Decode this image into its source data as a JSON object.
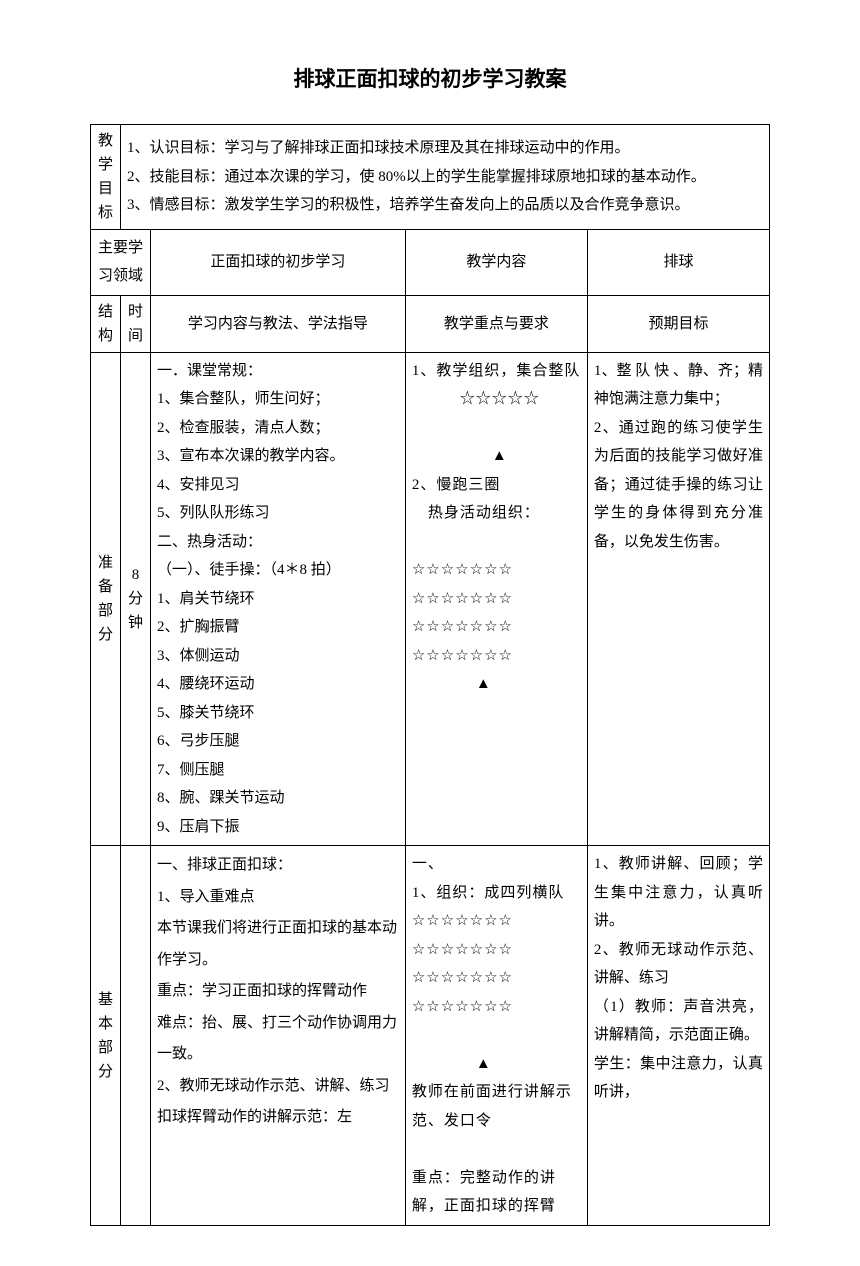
{
  "title": "排球正面扣球的初步学习教案",
  "row_objectives": {
    "label_col": [
      "教",
      "学",
      "目",
      "标"
    ],
    "text": "1、认识目标：学习与了解排球正面扣球技术原理及其在排球运动中的作用。\n2、技能目标：通过本次课的学习，使 80%以上的学生能掌握排球原地扣球的基本动作。\n3、情感目标：激发学生学习的积极性，培养学生奋发向上的品质以及合作竞争意识。"
  },
  "row_domain": {
    "label1": "主要学习领域",
    "value1": "正面扣球的初步学习",
    "label2": "教学内容",
    "value2": "排球"
  },
  "row_headers": {
    "col1": [
      "结",
      "构"
    ],
    "col2": [
      "时",
      "间"
    ],
    "col3": "学习内容与教法、学法指导",
    "col4": "教学重点与要求",
    "col5": "预期目标"
  },
  "section_prep": {
    "label": [
      "准",
      "备",
      "部",
      "分"
    ],
    "time": "8分钟",
    "content": "一．课堂常规：\n1、集合整队，师生问好；\n2、检查服装，清点人数；\n3、宣布本次课的教学内容。\n4、安排见习\n5、列队队形练习\n二、热身活动：\n（一）、徒手操：（4＊8 拍）\n1、肩关节绕环\n2、扩胸振臂\n3、体侧运动\n4、腰绕环运动\n5、膝关节绕环\n6、弓步压腿\n7、侧压腿\n8、腕、踝关节运动\n9、压肩下振",
    "key_points": "1、教学组织，集合整队\n　　　☆☆☆☆☆\n\n　　　　　▲\n2、慢跑三圈\n　热身活动组织：\n\n☆☆☆☆☆☆☆\n☆☆☆☆☆☆☆\n☆☆☆☆☆☆☆\n☆☆☆☆☆☆☆\n　　　　▲",
    "goals": "1、整 队 快 、静、齐；精神饱满注意力集中；\n2、通过跑的练习使学生为后面的技能学习做好准备；通过徒手操的练习让学生的身体得到充分准备，以免发生伤害。"
  },
  "section_main": {
    "label": [
      "基",
      "本",
      "部",
      "分"
    ],
    "content": "一、排球正面扣球：\n1、导入重难点\n本节课我们将进行正面扣球的基本动作学习。\n重点：学习正面扣球的挥臂动作\n难点：抬、展、打三个动作协调用力一致。\n2、教师无球动作示范、讲解、练习\n扣球挥臂动作的讲解示范：左",
    "key_points": "一、\n1、组织：成四列横队\n☆☆☆☆☆☆☆\n☆☆☆☆☆☆☆\n☆☆☆☆☆☆☆\n☆☆☆☆☆☆☆\n\n　　　　▲\n教师在前面进行讲解示范、发口令\n\n重点：完整动作的讲解，正面扣球的挥臂",
    "goals": "1、教师讲解、回顾；学生集中注意力，认真听讲。\n2、教师无球动作示范、讲解、练习\n（1）教师：声音洪亮，讲解精简，示范面正确。\n学生：集中注意力，认真听讲，"
  }
}
